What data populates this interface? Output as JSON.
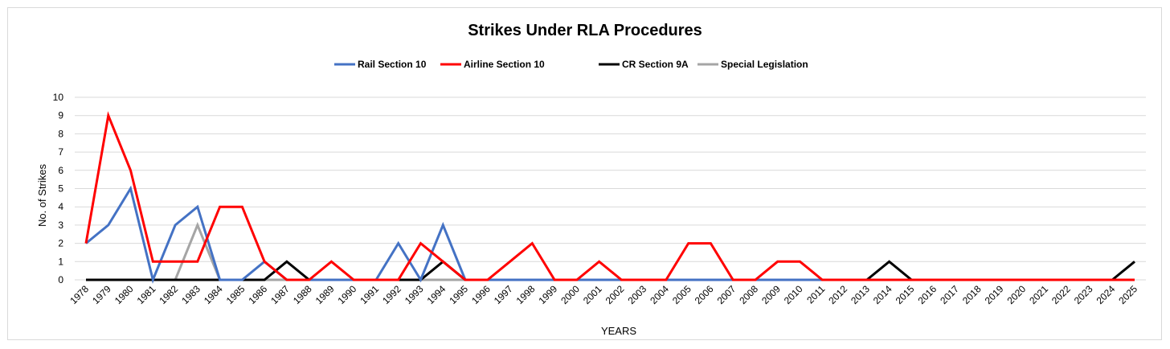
{
  "chart_data": {
    "type": "line",
    "title": "Strikes Under RLA Procedures",
    "xlabel": "YEARS",
    "ylabel": "No. of Strikes",
    "ylim": [
      0,
      10
    ],
    "yticks": [
      0,
      1,
      2,
      3,
      4,
      5,
      6,
      7,
      8,
      9,
      10
    ],
    "grid": true,
    "legend_position": "top-center",
    "categories": [
      "1978",
      "1979",
      "1980",
      "1981",
      "1982",
      "1983",
      "1984",
      "1985",
      "1986",
      "1987",
      "1988",
      "1989",
      "1990",
      "1991",
      "1992",
      "1993",
      "1994",
      "1995",
      "1996",
      "1997",
      "1998",
      "1999",
      "2000",
      "2001",
      "2002",
      "2003",
      "2004",
      "2005",
      "2006",
      "2007",
      "2008",
      "2009",
      "2010",
      "2011",
      "2012",
      "2013",
      "2014",
      "2015",
      "2016",
      "2017",
      "2018",
      "2019",
      "2020",
      "2021",
      "2022",
      "2023",
      "2024",
      "2025"
    ],
    "series": [
      {
        "name": "Rail Section 10",
        "color": "#4472c4",
        "values": [
          2,
          3,
          5,
          0,
          3,
          4,
          0,
          0,
          1,
          0,
          0,
          0,
          0,
          0,
          2,
          0,
          3,
          0,
          0,
          0,
          0,
          0,
          0,
          0,
          0,
          0,
          0,
          0,
          0,
          0,
          0,
          0,
          0,
          0,
          0,
          0,
          0,
          0,
          0,
          0,
          0,
          0,
          0,
          0,
          0,
          0,
          0,
          0
        ]
      },
      {
        "name": "Airline Section 10",
        "color": "#ff0000",
        "values": [
          2,
          9,
          6,
          1,
          1,
          1,
          4,
          4,
          1,
          0,
          0,
          1,
          0,
          0,
          0,
          2,
          1,
          0,
          0,
          1,
          2,
          0,
          0,
          1,
          0,
          0,
          0,
          2,
          2,
          0,
          0,
          1,
          1,
          0,
          0,
          0,
          0,
          0,
          0,
          0,
          0,
          0,
          0,
          0,
          0,
          0,
          0,
          0
        ]
      },
      {
        "name": "CR Section 9A",
        "color": "#000000",
        "values": [
          0,
          0,
          0,
          0,
          0,
          0,
          0,
          0,
          0,
          1,
          0,
          0,
          0,
          0,
          0,
          0,
          1,
          0,
          0,
          0,
          0,
          0,
          0,
          0,
          0,
          0,
          0,
          0,
          0,
          0,
          0,
          0,
          0,
          0,
          0,
          0,
          1,
          0,
          0,
          0,
          0,
          0,
          0,
          0,
          0,
          0,
          0,
          1
        ]
      },
      {
        "name": "Special Legislation",
        "color": "#a5a5a5",
        "values": [
          0,
          0,
          0,
          0,
          0,
          3,
          0,
          0,
          0,
          0,
          0,
          0,
          0,
          0,
          0,
          0,
          0,
          0,
          0,
          0,
          0,
          0,
          0,
          0,
          0,
          0,
          0,
          0,
          0,
          0,
          0,
          0,
          0,
          0,
          0,
          0,
          0,
          0,
          0,
          0,
          0,
          0,
          0,
          0,
          0,
          0,
          0,
          0
        ]
      }
    ]
  }
}
